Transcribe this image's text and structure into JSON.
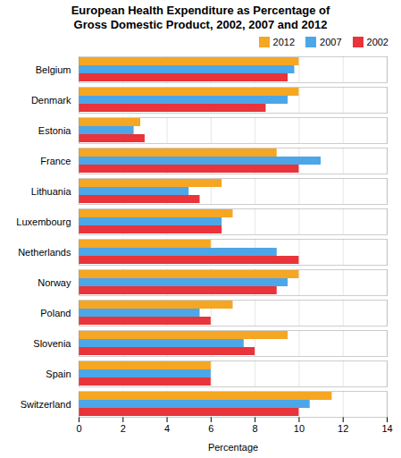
{
  "chart_data": {
    "type": "bar",
    "orientation": "horizontal",
    "title": "European Health Expenditure as Percentage of\nGross Domestic Product, 2002, 2007 and 2012",
    "xlabel": "Percentage",
    "categories": [
      "Belgium",
      "Denmark",
      "Estonia",
      "France",
      "Lithuania",
      "Luxembourg",
      "Netherlands",
      "Norway",
      "Poland",
      "Slovenia",
      "Spain",
      "Switzerland"
    ],
    "series": [
      {
        "name": "2012",
        "color": "#F5A623",
        "values": [
          10.0,
          10.0,
          2.8,
          9.0,
          6.5,
          7.0,
          6.0,
          10.0,
          7.0,
          9.5,
          6.0,
          11.5
        ]
      },
      {
        "name": "2007",
        "color": "#4DA6E8",
        "values": [
          9.8,
          9.5,
          2.5,
          11.0,
          5.0,
          6.5,
          9.0,
          9.5,
          5.5,
          7.5,
          6.0,
          10.5
        ]
      },
      {
        "name": "2002",
        "color": "#E8343A",
        "values": [
          9.5,
          8.5,
          3.0,
          10.0,
          5.5,
          6.5,
          10.0,
          9.0,
          6.0,
          8.0,
          6.0,
          10.0
        ]
      }
    ],
    "xlim": [
      0,
      14
    ],
    "xticks": [
      0,
      2,
      4,
      6,
      8,
      10,
      12,
      14
    ],
    "grid": true,
    "legend": "upper right"
  }
}
